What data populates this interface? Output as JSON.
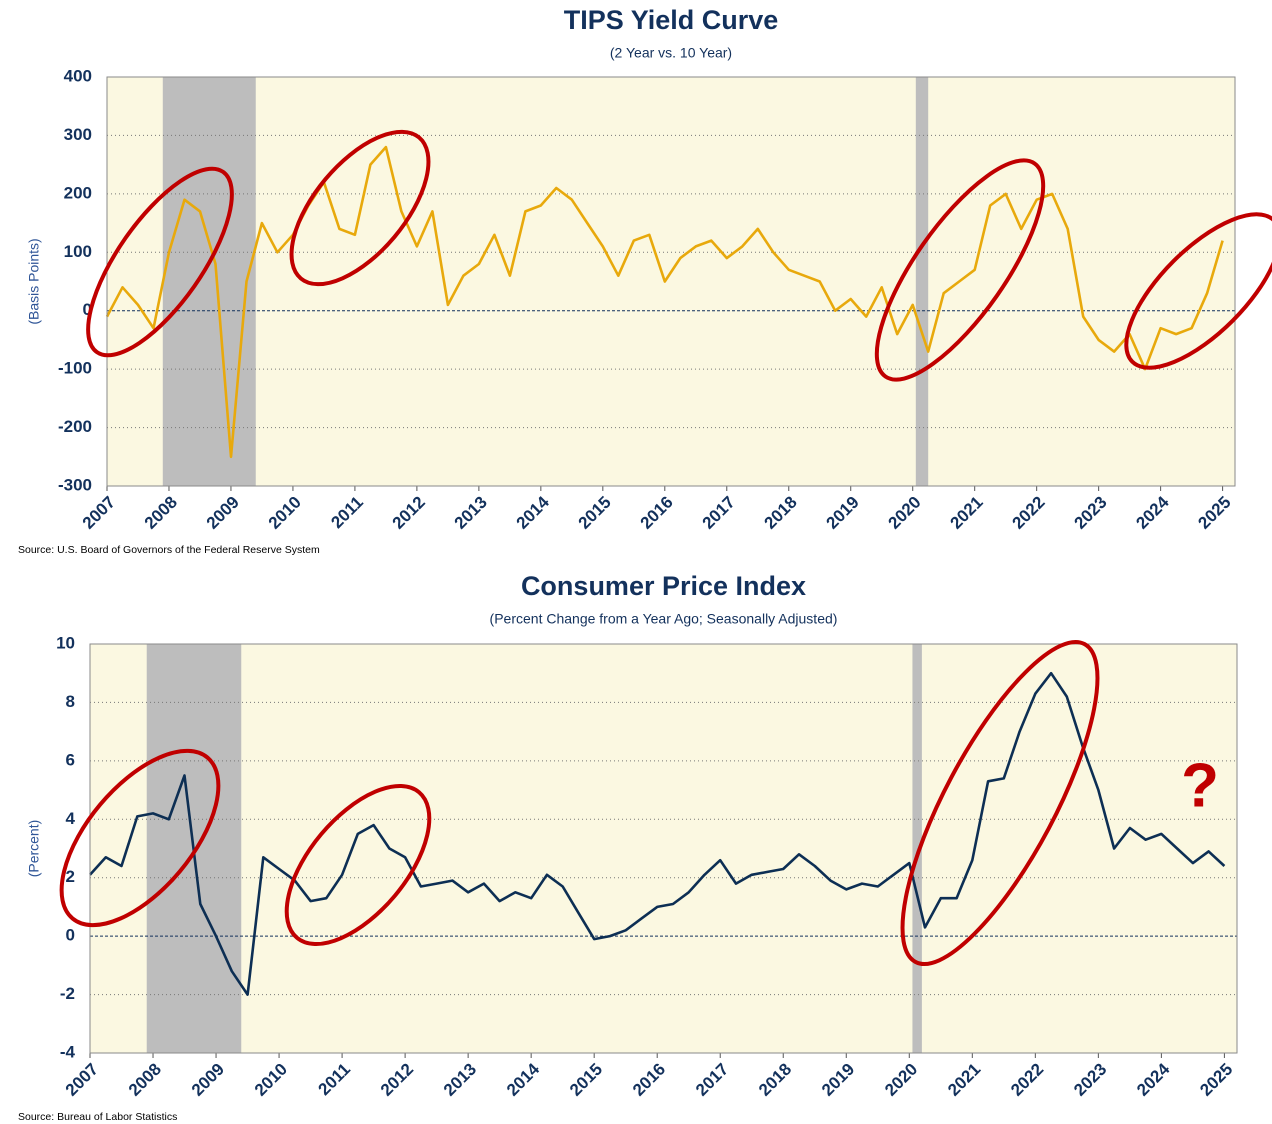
{
  "chart_data": [
    {
      "type": "line",
      "title": "TIPS Yield Curve",
      "subtitle": "(2 Year vs. 10 Year)",
      "y_label": "(Basis Points)",
      "source": "Source: U.S. Board of Governors of the Federal Reserve System",
      "color": "#e8a90c",
      "x": [
        2007,
        2007.25,
        2007.5,
        2007.75,
        2008,
        2008.25,
        2008.5,
        2008.75,
        2009,
        2009.25,
        2009.5,
        2009.75,
        2010,
        2010.25,
        2010.5,
        2010.75,
        2011,
        2011.25,
        2011.5,
        2011.75,
        2012,
        2012.25,
        2012.5,
        2012.75,
        2013,
        2013.25,
        2013.5,
        2013.75,
        2014,
        2014.25,
        2014.5,
        2014.75,
        2015,
        2015.25,
        2015.5,
        2015.75,
        2016,
        2016.25,
        2016.5,
        2016.75,
        2017,
        2017.25,
        2017.5,
        2017.75,
        2018,
        2018.25,
        2018.5,
        2018.75,
        2019,
        2019.25,
        2019.5,
        2019.75,
        2020,
        2020.25,
        2020.5,
        2020.75,
        2021,
        2021.25,
        2021.5,
        2021.75,
        2022,
        2022.25,
        2022.5,
        2022.75,
        2023,
        2023.25,
        2023.5,
        2023.75,
        2024,
        2024.25,
        2024.5,
        2024.75,
        2025
      ],
      "values": [
        -10,
        40,
        10,
        -30,
        100,
        190,
        170,
        80,
        -250,
        50,
        150,
        100,
        130,
        180,
        220,
        140,
        130,
        250,
        280,
        170,
        110,
        170,
        10,
        60,
        80,
        130,
        60,
        170,
        180,
        210,
        190,
        150,
        110,
        60,
        120,
        130,
        50,
        90,
        110,
        120,
        90,
        110,
        140,
        100,
        70,
        60,
        50,
        0,
        20,
        -10,
        40,
        -40,
        10,
        -70,
        30,
        50,
        70,
        180,
        200,
        140,
        190,
        200,
        140,
        -10,
        -50,
        -70,
        -40,
        -100,
        -30,
        -40,
        -30,
        30,
        120
      ],
      "xlim": [
        2007,
        2025.2
      ],
      "xticks": [
        2007,
        2008,
        2009,
        2010,
        2011,
        2012,
        2013,
        2014,
        2015,
        2016,
        2017,
        2018,
        2019,
        2020,
        2021,
        2022,
        2023,
        2024,
        2025
      ],
      "ylim": [
        -300,
        400
      ],
      "yticks": [
        -300,
        -200,
        -100,
        0,
        100,
        200,
        300,
        400
      ],
      "grid": true,
      "recessions": [
        [
          2007.9,
          2009.4
        ],
        [
          2020.05,
          2020.25
        ]
      ]
    },
    {
      "type": "line",
      "title": "Consumer Price Index",
      "subtitle": "(Percent Change from a Year Ago; Seasonally Adjusted)",
      "y_label": "(Percent)",
      "source": "Source: Bureau of Labor Statistics",
      "color": "#0d2f54",
      "annotation": "?",
      "x": [
        2007,
        2007.25,
        2007.5,
        2007.75,
        2008,
        2008.25,
        2008.5,
        2008.75,
        2009,
        2009.25,
        2009.5,
        2009.75,
        2010,
        2010.25,
        2010.5,
        2010.75,
        2011,
        2011.25,
        2011.5,
        2011.75,
        2012,
        2012.25,
        2012.5,
        2012.75,
        2013,
        2013.25,
        2013.5,
        2013.75,
        2014,
        2014.25,
        2014.5,
        2014.75,
        2015,
        2015.25,
        2015.5,
        2015.75,
        2016,
        2016.25,
        2016.5,
        2016.75,
        2017,
        2017.25,
        2017.5,
        2017.75,
        2018,
        2018.25,
        2018.5,
        2018.75,
        2019,
        2019.25,
        2019.5,
        2019.75,
        2020,
        2020.25,
        2020.5,
        2020.75,
        2021,
        2021.25,
        2021.5,
        2021.75,
        2022,
        2022.25,
        2022.5,
        2022.75,
        2023,
        2023.25,
        2023.5,
        2023.75,
        2024,
        2024.25,
        2024.5,
        2024.75,
        2025
      ],
      "values": [
        2.1,
        2.7,
        2.4,
        4.1,
        4.2,
        4.0,
        5.5,
        1.1,
        0.0,
        -1.2,
        -2.0,
        2.7,
        2.3,
        1.9,
        1.2,
        1.3,
        2.1,
        3.5,
        3.8,
        3.0,
        2.7,
        1.7,
        1.8,
        1.9,
        1.5,
        1.8,
        1.2,
        1.5,
        1.3,
        2.1,
        1.7,
        0.8,
        -0.1,
        0.0,
        0.2,
        0.6,
        1.0,
        1.1,
        1.5,
        2.1,
        2.6,
        1.8,
        2.1,
        2.2,
        2.3,
        2.8,
        2.4,
        1.9,
        1.6,
        1.8,
        1.7,
        2.1,
        2.5,
        0.3,
        1.3,
        1.3,
        2.6,
        5.3,
        5.4,
        7.0,
        8.3,
        9.0,
        8.2,
        6.5,
        5.0,
        3.0,
        3.7,
        3.3,
        3.5,
        3.0,
        2.5,
        2.9,
        2.4
      ],
      "xlim": [
        2007,
        2025.2
      ],
      "xticks": [
        2007,
        2008,
        2009,
        2010,
        2011,
        2012,
        2013,
        2014,
        2015,
        2016,
        2017,
        2018,
        2019,
        2020,
        2021,
        2022,
        2023,
        2024,
        2025
      ],
      "ylim": [
        -4,
        10
      ],
      "yticks": [
        -4,
        -2,
        0,
        2,
        4,
        6,
        8,
        10
      ],
      "grid": true,
      "recessions": [
        [
          2007.9,
          2009.4
        ],
        [
          2020.05,
          2020.2
        ]
      ]
    }
  ]
}
